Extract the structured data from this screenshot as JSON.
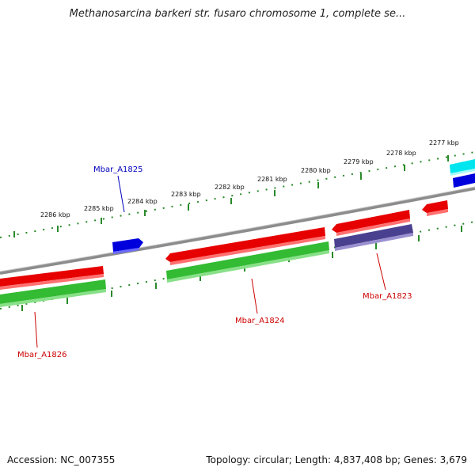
{
  "title": "Methanosarcina barkeri str. fusaro chromosome 1, complete se...",
  "footer": {
    "accession": "Accession: NC_007355",
    "summary": "Topology: circular; Length: 4,837,408 bp; Genes: 3,679"
  },
  "ruler_labels": [
    "2286 kbp",
    "2285 kbp",
    "2284 kbp",
    "2283 kbp",
    "2282 kbp",
    "2281 kbp",
    "2280 kbp",
    "2279 kbp",
    "2278 kbp",
    "2277 kbp"
  ],
  "gene_labels": {
    "mbar_a1825": "Mbar_A1825",
    "mbar_a1826": "Mbar_A1826",
    "mbar_a1824": "Mbar_A1824",
    "mbar_a1823": "Mbar_A1823"
  },
  "colors": {
    "backbone": "#8c8c8c",
    "forward_cds": "#e60000",
    "reverse_cds": "#33bb33",
    "ruler": "#2a8a2a",
    "blue_feature": "#0000dd",
    "purple_feature": "#4a4090",
    "cyan_feature": "#00e5ee",
    "label_blue": "#0000bb",
    "label_red": "#cc0000"
  }
}
